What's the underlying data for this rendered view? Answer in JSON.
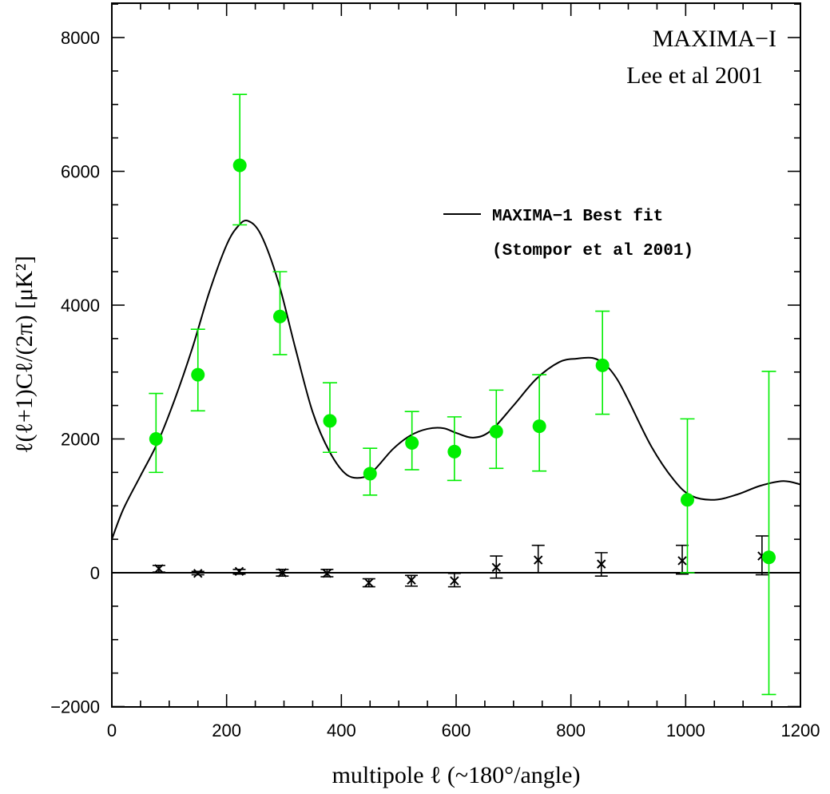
{
  "chart_data": {
    "type": "scatter",
    "title": "",
    "xlabel": "multipole ℓ (~180°/angle)",
    "ylabel": "ℓ(ℓ+1)Cℓ/(2π)  [μK²]",
    "xlim": [
      0,
      1200
    ],
    "ylim": [
      -2000,
      8500
    ],
    "x_ticks": [
      0,
      200,
      400,
      600,
      800,
      1000,
      1200
    ],
    "y_ticks": [
      -2000,
      0,
      2000,
      4000,
      6000,
      8000
    ],
    "annotations": [
      "MAXIMA−I",
      "Lee et al 2001"
    ],
    "legend": {
      "placement": "upper-right",
      "line_label": "MAXIMA−1 Best fit",
      "line_label_2": "(Stompor et al 2001)"
    },
    "series": [
      {
        "kind": "points-with-errorbars",
        "color": "#00ee00",
        "x": [
          77,
          150,
          223,
          293,
          380,
          450,
          523,
          597,
          670,
          745,
          855,
          1003,
          1145
        ],
        "y": [
          2000,
          2960,
          6090,
          3830,
          2270,
          1480,
          1940,
          1810,
          2110,
          2190,
          3100,
          1090,
          230
        ],
        "err_low": [
          1500,
          2420,
          5200,
          3260,
          1800,
          1160,
          1540,
          1380,
          1560,
          1520,
          2370,
          0,
          -1820
        ],
        "err_high": [
          2680,
          3640,
          7150,
          4500,
          2840,
          1860,
          2410,
          2330,
          2730,
          2960,
          3910,
          2300,
          3010
        ]
      },
      {
        "kind": "cross-with-errorbars",
        "color": "#000000",
        "x": [
          82,
          150,
          222,
          297,
          375,
          448,
          522,
          597,
          670,
          743,
          853,
          994,
          1133
        ],
        "y": [
          60,
          -10,
          20,
          0,
          -10,
          -150,
          -110,
          -120,
          80,
          190,
          130,
          180,
          250
        ],
        "err_low": [
          10,
          -30,
          -20,
          -50,
          -60,
          -210,
          -200,
          -210,
          -80,
          0,
          -50,
          -20,
          -30
        ],
        "err_high": [
          110,
          20,
          50,
          50,
          50,
          -90,
          -40,
          -10,
          250,
          410,
          300,
          410,
          550
        ]
      },
      {
        "name": "MAXIMA−1 Best fit",
        "kind": "line",
        "color": "#000000",
        "x": [
          0,
          20,
          50,
          80,
          110,
          140,
          170,
          200,
          220,
          237,
          260,
          290,
          320,
          350,
          380,
          410,
          440,
          460,
          490,
          520,
          550,
          578,
          600,
          630,
          660,
          700,
          740,
          780,
          810,
          838,
          860,
          880,
          900,
          940,
          980,
          1010,
          1050,
          1090,
          1130,
          1170,
          1200
        ],
        "y": [
          500,
          950,
          1450,
          1950,
          2600,
          3350,
          4200,
          4900,
          5180,
          5260,
          5050,
          4350,
          3350,
          2400,
          1800,
          1460,
          1430,
          1560,
          1850,
          2050,
          2150,
          2160,
          2090,
          2020,
          2120,
          2500,
          2900,
          3150,
          3200,
          3210,
          3110,
          2900,
          2580,
          1890,
          1380,
          1150,
          1090,
          1170,
          1300,
          1370,
          1320
        ]
      }
    ]
  }
}
